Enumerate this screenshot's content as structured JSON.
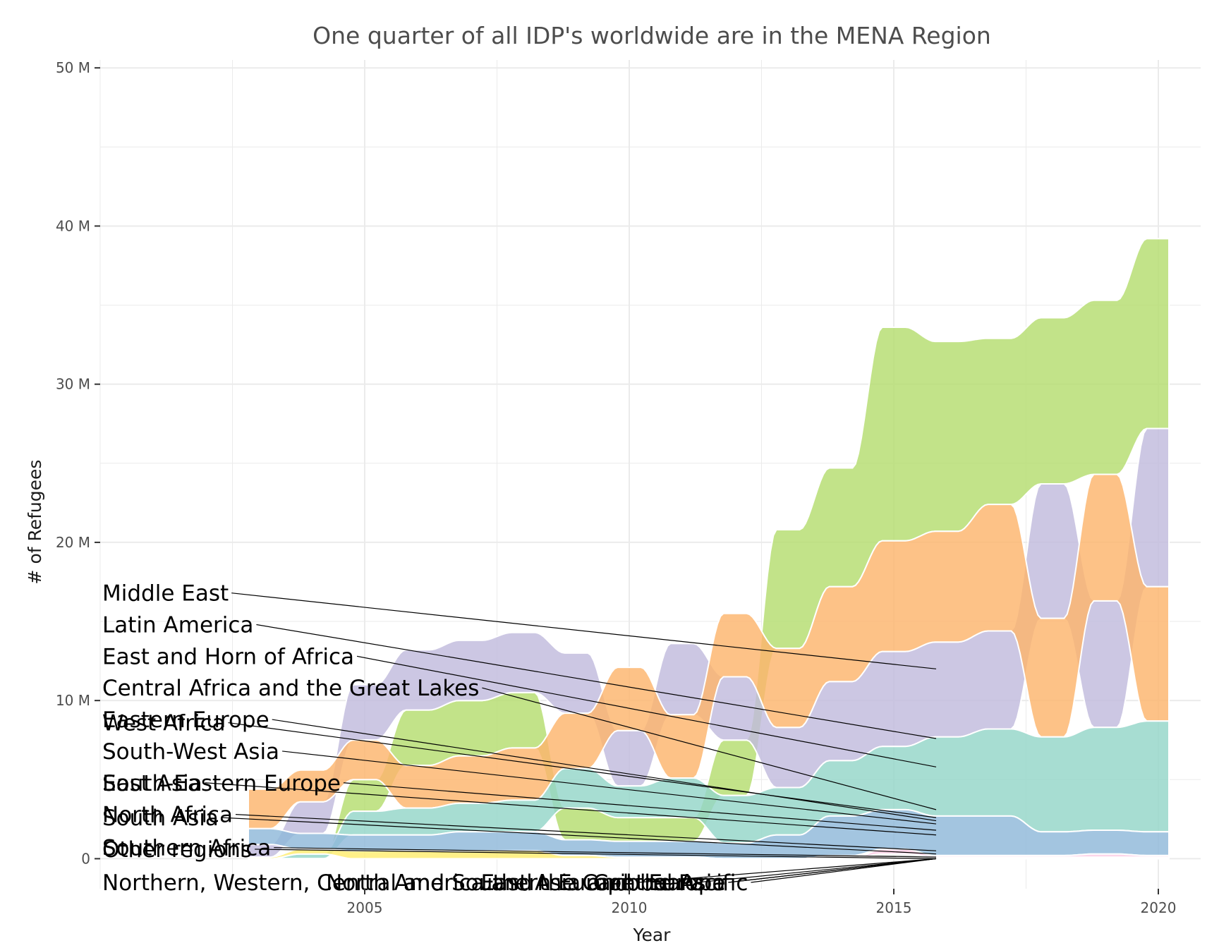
{
  "chart_data": {
    "type": "area",
    "subtype": "stacked bump-sorted stream (ribbon) chart",
    "title": "One quarter of all IDP's worldwide are in the MENA Region",
    "xlabel": "Year",
    "ylabel": "# of Refugees",
    "xlim": [
      2000,
      2020.8
    ],
    "ylim": [
      -1.9,
      50.5
    ],
    "grid": true,
    "legend": "none (labels at left with leader lines)",
    "x_ticks": [
      2005,
      2010,
      2015,
      2020
    ],
    "x_tick_labels": [
      "2005",
      "2010",
      "2015",
      "2020"
    ],
    "y_ticks": [
      0,
      10,
      20,
      30,
      40,
      50
    ],
    "y_tick_labels": [
      "0",
      "10 M",
      "20 M",
      "30 M",
      "40 M",
      "50 M"
    ],
    "units": "millions of people",
    "x": [
      2003,
      2004,
      2005,
      2006,
      2007,
      2008,
      2009,
      2010,
      2011,
      2012,
      2013,
      2014,
      2015,
      2016,
      2017,
      2018,
      2019,
      2020
    ],
    "series": [
      {
        "name": "Middle East",
        "color": "#b5dd6f",
        "values": [
          0,
          0,
          2.0,
          3.5,
          3.5,
          3.5,
          2.0,
          1.5,
          1.5,
          3.5,
          7.5,
          7.5,
          13.5,
          12.0,
          10.5,
          10.5,
          11.0,
          12.0
        ]
      },
      {
        "name": "Latin America",
        "color": "#c1bbdd",
        "values": [
          0.8,
          2.0,
          3.5,
          3.8,
          3.8,
          3.8,
          3.8,
          3.5,
          4.5,
          4.0,
          3.8,
          5.0,
          6.0,
          6.0,
          6.2,
          8.5,
          8.0,
          10.0
        ]
      },
      {
        "name": "East and Horn of Africa",
        "color": "#fdb46c",
        "values": [
          2.5,
          2.0,
          2.5,
          2.7,
          3.0,
          3.3,
          3.5,
          4.0,
          4.0,
          4.0,
          5.0,
          6.0,
          7.0,
          7.0,
          8.0,
          7.5,
          8.0,
          8.5
        ]
      },
      {
        "name": "Central Africa and the Great Lakes",
        "color": "#94d5c8",
        "values": [
          0,
          0.3,
          1.5,
          1.7,
          1.8,
          2.0,
          2.5,
          2.0,
          2.5,
          3.0,
          3.0,
          3.5,
          4.0,
          5.0,
          5.5,
          6.0,
          6.5,
          7.0
        ]
      },
      {
        "name": "Eastern Europe",
        "color": "#dddddd",
        "values": [
          0,
          0,
          0,
          0,
          0,
          0,
          0,
          0,
          0,
          0,
          0,
          0.2,
          0.2,
          0.1,
          0.1,
          0.1,
          0.1,
          0.1
        ]
      },
      {
        "name": "West Africa",
        "color": "#fb8072",
        "values": [
          0,
          0,
          0,
          0,
          0,
          0,
          0,
          0,
          0,
          0,
          0,
          0,
          0.1,
          0,
          0,
          0,
          0,
          0
        ]
      },
      {
        "name": "South-West Asia",
        "color": "#8fb8d9",
        "values": [
          1.0,
          1.0,
          1.0,
          1.0,
          1.2,
          1.2,
          1.0,
          1.0,
          1.0,
          1.0,
          1.5,
          2.5,
          2.5,
          2.5,
          2.5,
          1.5,
          1.5,
          1.5
        ]
      },
      {
        "name": "South-Eastern Europe",
        "color": "#fccde5",
        "values": [
          0,
          0,
          0,
          0,
          0,
          0,
          0,
          0,
          0,
          0,
          0,
          0,
          0.3,
          0.1,
          0.1,
          0.1,
          0.2,
          0.1
        ]
      },
      {
        "name": "East Asia",
        "color": "#bc80bd",
        "values": [
          0,
          0,
          0,
          0,
          0,
          0,
          0,
          0,
          0,
          0,
          0,
          0,
          0,
          0,
          0,
          0,
          0,
          0
        ]
      },
      {
        "name": "North Africa",
        "color": "#ccebc5",
        "values": [
          0,
          0,
          0,
          0,
          0,
          0,
          0,
          0,
          0,
          0,
          0,
          0,
          0,
          0,
          0,
          0,
          0,
          0
        ]
      },
      {
        "name": "South Asia",
        "color": "#ffed6f",
        "values": [
          0.1,
          0.3,
          0.5,
          0.5,
          0.5,
          0.5,
          0.2,
          0.1,
          0.1,
          0,
          0,
          0,
          0,
          0,
          0,
          0,
          0,
          0
        ]
      },
      {
        "name": "Southern Africa",
        "color": "#80b1d3",
        "values": [
          0,
          0,
          0,
          0,
          0,
          0,
          0,
          0,
          0,
          0,
          0,
          0,
          0,
          0,
          0,
          0,
          0,
          0
        ]
      },
      {
        "name": "Other regions",
        "color": "#d9d9d9",
        "values": [
          0,
          0,
          0,
          0,
          0,
          0,
          0,
          0,
          0,
          0,
          0,
          0,
          0,
          0,
          0,
          0,
          0,
          0
        ]
      },
      {
        "name": "Northern, Western, Central and Southern Europe",
        "color": "#e5e5e5",
        "values": [
          0,
          0,
          0,
          0,
          0,
          0,
          0,
          0,
          0,
          0,
          0,
          0,
          0,
          0,
          0,
          0,
          0,
          0
        ]
      },
      {
        "name": "North America and the Caribbean",
        "color": "#e5e5e5",
        "values": [
          0,
          0,
          0,
          0,
          0,
          0,
          0,
          0,
          0,
          0,
          0,
          0,
          0,
          0,
          0,
          0,
          0,
          0
        ]
      },
      {
        "name": "East Asia and the Pacific",
        "color": "#e5e5e5",
        "values": [
          0,
          0,
          0,
          0,
          0,
          0,
          0,
          0,
          0,
          0,
          0,
          0,
          0,
          0,
          0,
          0,
          0,
          0
        ]
      },
      {
        "name": "Central Asia",
        "color": "#e5e5e5",
        "values": [
          0,
          0,
          0,
          0,
          0,
          0,
          0,
          0,
          0,
          0,
          0,
          0,
          0,
          0,
          0,
          0,
          0,
          0
        ]
      },
      {
        "name": "Europe",
        "color": "#e5e5e5",
        "values": [
          0,
          0,
          0,
          0,
          0,
          0,
          0,
          0,
          0,
          0,
          0,
          0,
          0,
          0,
          0,
          0,
          0,
          0
        ]
      }
    ],
    "labels": [
      {
        "text": "Middle East",
        "y": 16.8,
        "target_y": 12.0
      },
      {
        "text": "Latin America",
        "y": 14.8,
        "target_y": 7.6
      },
      {
        "text": "East and Horn of Africa",
        "y": 12.8,
        "target_y": 5.8
      },
      {
        "text": "Central Africa and the Great Lakes",
        "y": 10.8,
        "target_y": 3.1
      },
      {
        "text": "West Africa",
        "y": 8.6,
        "target_y": 2.6
      },
      {
        "text": "Eastern Europe",
        "y": 8.8,
        "target_y": 2.4
      },
      {
        "text": "South-West Asia",
        "y": 6.8,
        "target_y": 2.2
      },
      {
        "text": "South-Eastern Europe",
        "y": 4.8,
        "target_y": 1.8
      },
      {
        "text": "East Asia",
        "y": 4.8,
        "target_y": 1.5
      },
      {
        "text": "North Africa",
        "y": 2.8,
        "target_y": 0.5
      },
      {
        "text": "South Asia",
        "y": 2.6,
        "target_y": 0.3
      },
      {
        "text": "Southern Africa",
        "y": 0.7,
        "target_y": 0.1
      },
      {
        "text": "Other regions",
        "y": 0.6,
        "target_y": 0.0
      },
      {
        "text": "Northern, Western, Central and Southern Europe",
        "y": -1.5,
        "target_y": 0.0
      },
      {
        "text": "North America and the Caribbean",
        "y": -1.5,
        "target_y": 0.0
      },
      {
        "text": "East Asia and the Pacific",
        "y": -1.5,
        "target_y": 0.0
      },
      {
        "text": "Central Asia",
        "y": -1.5,
        "target_y": 0.0
      },
      {
        "text": "Europe",
        "y": -1.5,
        "target_y": 0.0
      }
    ]
  }
}
